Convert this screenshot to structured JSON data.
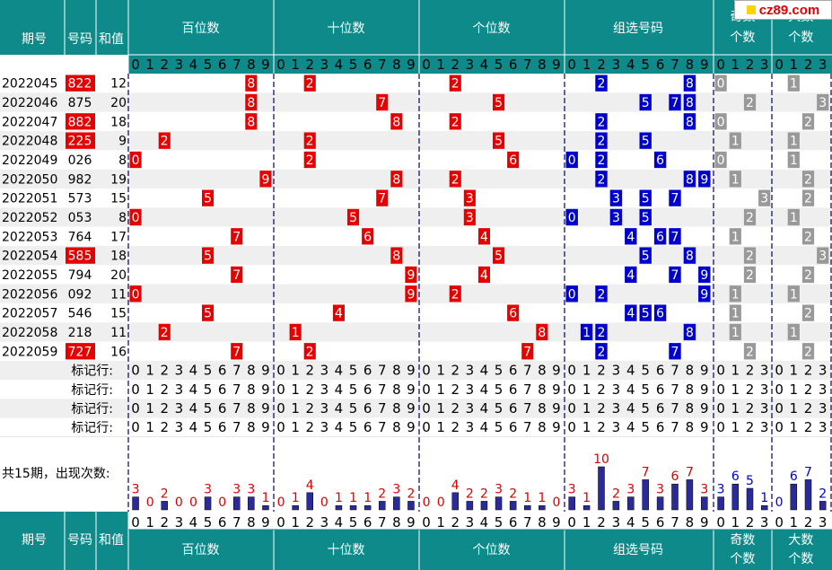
{
  "colors": {
    "header_bg": "#0e8a8a",
    "red_cell": "#e60000",
    "blue_cell": "#0000cc",
    "gray_cell": "#999999",
    "bar_fill": "#2a2a99",
    "count_red": "#dd0000",
    "count_blue": "#0000cc",
    "stripe": "#efefef"
  },
  "badge": {
    "text": "cz89.com",
    "icon": "yellow-square-icon"
  },
  "header": {
    "period": "期号",
    "number": "号码",
    "sum": "和值",
    "hundreds": "百位数",
    "tens": "十位数",
    "units": "个位数",
    "group": "组选号码",
    "odd": "奇数个数",
    "big": "大数个数"
  },
  "rows": [
    {
      "period": "2022045",
      "number": "822",
      "sum": "12",
      "highlight": true
    },
    {
      "period": "2022046",
      "number": "875",
      "sum": "20",
      "highlight": false
    },
    {
      "period": "2022047",
      "number": "882",
      "sum": "18",
      "highlight": true
    },
    {
      "period": "2022048",
      "number": "225",
      "sum": "9",
      "highlight": true
    },
    {
      "period": "2022049",
      "number": "026",
      "sum": "8",
      "highlight": false
    },
    {
      "period": "2022050",
      "number": "982",
      "sum": "19",
      "highlight": false
    },
    {
      "period": "2022051",
      "number": "573",
      "sum": "15",
      "highlight": false
    },
    {
      "period": "2022052",
      "number": "053",
      "sum": "8",
      "highlight": false
    },
    {
      "period": "2022053",
      "number": "764",
      "sum": "17",
      "highlight": false
    },
    {
      "period": "2022054",
      "number": "585",
      "sum": "18",
      "highlight": true
    },
    {
      "period": "2022055",
      "number": "794",
      "sum": "20",
      "highlight": false
    },
    {
      "period": "2022056",
      "number": "092",
      "sum": "11",
      "highlight": false
    },
    {
      "period": "2022057",
      "number": "546",
      "sum": "15",
      "highlight": false
    },
    {
      "period": "2022058",
      "number": "218",
      "sum": "11",
      "highlight": false
    },
    {
      "period": "2022059",
      "number": "727",
      "sum": "16",
      "highlight": true
    }
  ],
  "marker_label": "标记行:",
  "marker_rows": 4,
  "stats_label": "共15期，出现次数:",
  "chart_data": {
    "type": "table",
    "counts": {
      "hundreds": [
        3,
        0,
        2,
        0,
        0,
        3,
        0,
        3,
        3,
        1
      ],
      "tens": [
        0,
        1,
        4,
        0,
        1,
        1,
        1,
        2,
        3,
        2
      ],
      "units": [
        0,
        0,
        4,
        2,
        2,
        3,
        2,
        1,
        1,
        0
      ],
      "group": [
        3,
        1,
        10,
        2,
        3,
        7,
        3,
        6,
        7,
        3
      ],
      "odd": [
        3,
        6,
        5,
        1
      ],
      "big": [
        0,
        6,
        7,
        2
      ]
    },
    "count_max": 10
  }
}
